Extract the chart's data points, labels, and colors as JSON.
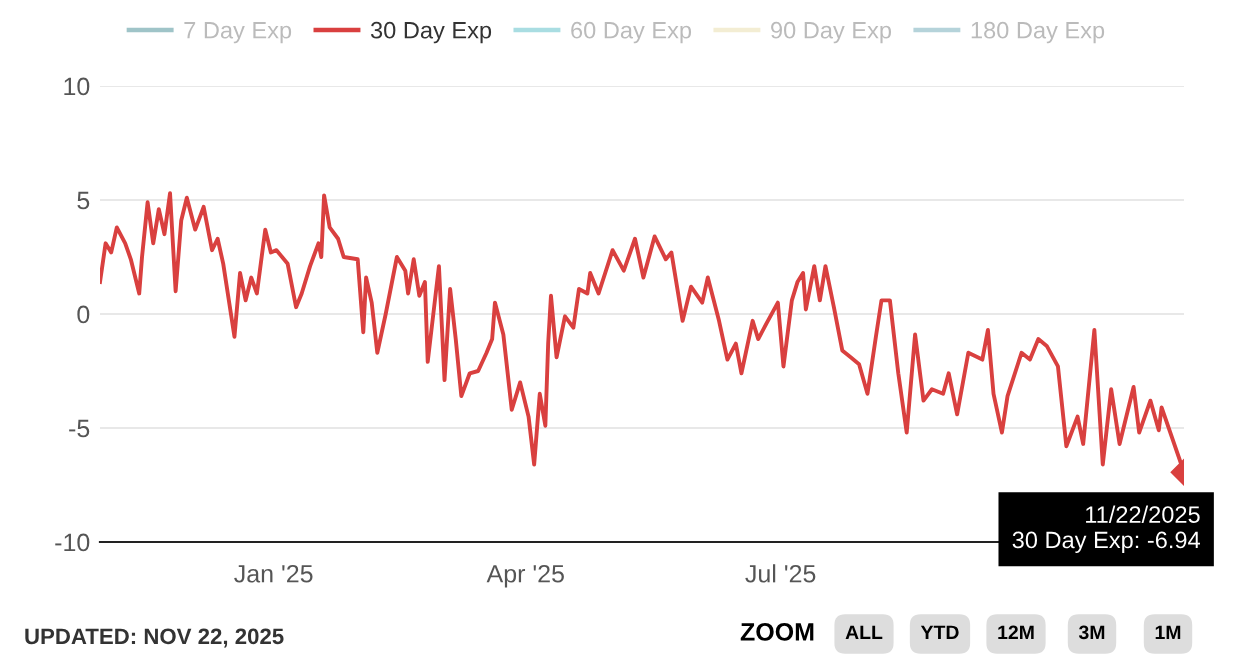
{
  "chart_data": {
    "type": "line",
    "x": [
      "2024-10-31",
      "2024-11-02",
      "2024-11-04",
      "2024-11-06",
      "2024-11-09",
      "2024-11-11",
      "2024-11-14",
      "2024-11-15",
      "2024-11-17",
      "2024-11-19",
      "2024-11-21",
      "2024-11-23",
      "2024-11-25",
      "2024-11-27",
      "2024-11-29",
      "2024-12-01",
      "2024-12-04",
      "2024-12-07",
      "2024-12-10",
      "2024-12-12",
      "2024-12-14",
      "2024-12-18",
      "2024-12-20",
      "2024-12-22",
      "2024-12-24",
      "2024-12-26",
      "2024-12-29",
      "2024-12-31",
      "2025-01-02",
      "2025-01-06",
      "2025-01-09",
      "2025-01-11",
      "2025-01-14",
      "2025-01-17",
      "2025-01-18",
      "2025-01-19",
      "2025-01-21",
      "2025-01-24",
      "2025-01-26",
      "2025-01-31",
      "2025-02-02",
      "2025-02-03",
      "2025-02-05",
      "2025-02-07",
      "2025-02-10",
      "2025-02-14",
      "2025-02-17",
      "2025-02-18",
      "2025-02-20",
      "2025-02-22",
      "2025-02-24",
      "2025-02-25",
      "2025-03-01",
      "2025-03-03",
      "2025-03-05",
      "2025-03-07",
      "2025-03-09",
      "2025-03-12",
      "2025-03-15",
      "2025-03-18",
      "2025-03-20",
      "2025-03-21",
      "2025-03-24",
      "2025-03-27",
      "2025-03-30",
      "2025-04-02",
      "2025-04-04",
      "2025-04-06",
      "2025-04-08",
      "2025-04-09",
      "2025-04-10",
      "2025-04-12",
      "2025-04-15",
      "2025-04-18",
      "2025-04-20",
      "2025-04-23",
      "2025-04-24",
      "2025-04-27",
      "2025-05-02",
      "2025-05-06",
      "2025-05-10",
      "2025-05-13",
      "2025-05-17",
      "2025-05-21",
      "2025-05-23",
      "2025-05-27",
      "2025-05-30",
      "2025-06-03",
      "2025-06-05",
      "2025-06-09",
      "2025-06-12",
      "2025-06-15",
      "2025-06-17",
      "2025-06-21",
      "2025-06-23",
      "2025-06-26",
      "2025-06-30",
      "2025-07-02",
      "2025-07-05",
      "2025-07-07",
      "2025-07-09",
      "2025-07-10",
      "2025-07-13",
      "2025-07-15",
      "2025-07-17",
      "2025-07-20",
      "2025-07-23",
      "2025-07-26",
      "2025-07-29",
      "2025-08-01",
      "2025-08-04",
      "2025-08-06",
      "2025-08-09",
      "2025-08-12",
      "2025-08-15",
      "2025-08-18",
      "2025-08-21",
      "2025-08-24",
      "2025-08-28",
      "2025-08-30",
      "2025-09-02",
      "2025-09-06",
      "2025-09-11",
      "2025-09-13",
      "2025-09-15",
      "2025-09-18",
      "2025-09-20",
      "2025-09-25",
      "2025-09-28",
      "2025-10-01",
      "2025-10-04",
      "2025-10-08",
      "2025-10-11",
      "2025-10-15",
      "2025-10-17",
      "2025-10-21",
      "2025-10-24",
      "2025-10-27",
      "2025-10-30",
      "2025-11-04",
      "2025-11-06",
      "2025-11-10",
      "2025-11-13",
      "2025-11-14",
      "2025-11-22"
    ],
    "series": [
      {
        "name": "7 Day Exp",
        "color": "#9fc4c8",
        "values": [
          null,
          null,
          null,
          null,
          null,
          null,
          null,
          null,
          null,
          null,
          null,
          null,
          null,
          null,
          null,
          null,
          null,
          null,
          null,
          null,
          null,
          null,
          null,
          null,
          null,
          null,
          null,
          null,
          null,
          null,
          null,
          null,
          null,
          null,
          null,
          null,
          null,
          null,
          null,
          null,
          null,
          null,
          null,
          null,
          null,
          null,
          null,
          null,
          null,
          null,
          null,
          null,
          null,
          null,
          null,
          null,
          null,
          null,
          null,
          null,
          null,
          null,
          null,
          null,
          null,
          null,
          null,
          null,
          null,
          null,
          null,
          null,
          null,
          null,
          null,
          null,
          null,
          null,
          null,
          null,
          null,
          null,
          null,
          null,
          null,
          null,
          null,
          null,
          null,
          null,
          null,
          null,
          null,
          null,
          null,
          null,
          null,
          null,
          null,
          null,
          null,
          null,
          null,
          null,
          null,
          null,
          null,
          null,
          null,
          null,
          null,
          null,
          null,
          null,
          null,
          null,
          null,
          null,
          null,
          null,
          null,
          null,
          null,
          null,
          null,
          null,
          null,
          null,
          null,
          null,
          null,
          null,
          null,
          null,
          null,
          null,
          null,
          null,
          null,
          null,
          null,
          null,
          null,
          null,
          null
        ]
      },
      {
        "name": "30 Day Exp",
        "color": "#d9403f",
        "values": [
          1.4,
          3.1,
          2.7,
          3.8,
          3.1,
          2.4,
          0.9,
          2.5,
          4.9,
          3.1,
          4.6,
          3.5,
          5.3,
          1.0,
          4.1,
          5.1,
          3.7,
          4.7,
          2.8,
          3.3,
          2.2,
          -1.0,
          1.8,
          0.6,
          1.6,
          0.9,
          3.7,
          2.7,
          2.8,
          2.2,
          0.3,
          0.9,
          2.1,
          3.1,
          2.5,
          5.2,
          3.8,
          3.3,
          2.5,
          2.4,
          -0.8,
          1.6,
          0.5,
          -1.7,
          0.0,
          2.5,
          1.9,
          0.9,
          2.4,
          0.8,
          1.4,
          -2.1,
          2.1,
          -2.9,
          1.1,
          -1.1,
          -3.6,
          -2.6,
          -2.5,
          -1.7,
          -1.1,
          0.5,
          -0.9,
          -4.2,
          -3.0,
          -4.5,
          -6.6,
          -3.5,
          -4.9,
          -1.3,
          0.8,
          -1.9,
          -0.1,
          -0.6,
          1.1,
          0.9,
          1.8,
          0.9,
          2.8,
          1.9,
          3.3,
          1.6,
          3.4,
          2.4,
          2.7,
          -0.3,
          1.2,
          0.5,
          1.6,
          -0.3,
          -2.0,
          -1.3,
          -2.6,
          -0.3,
          -1.1,
          -0.4,
          0.5,
          -2.3,
          0.6,
          1.4,
          1.8,
          0.2,
          2.1,
          0.6,
          2.1,
          0.3,
          -1.6,
          -1.9,
          -2.2,
          -3.5,
          -1.0,
          0.6,
          0.6,
          -2.6,
          -5.2,
          -0.9,
          -3.8,
          -3.3,
          -3.5,
          -2.6,
          -4.4,
          -1.7,
          -2.0,
          -0.7,
          -3.5,
          -5.2,
          -3.6,
          -1.7,
          -2.0,
          -1.1,
          -1.4,
          -2.3,
          -5.8,
          -4.5,
          -5.7,
          -0.7,
          -6.6,
          -3.3,
          -5.7,
          -3.2,
          -5.2,
          -3.8,
          -5.1,
          -4.1,
          -6.94
        ]
      },
      {
        "name": "60 Day Exp",
        "color": "#a9dde2",
        "values": [
          null,
          null,
          null,
          null,
          null,
          null,
          null,
          null,
          null,
          null,
          null,
          null,
          null,
          null,
          null,
          null,
          null,
          null,
          null,
          null,
          null,
          null,
          null,
          null,
          null,
          null,
          null,
          null,
          null,
          null,
          null,
          null,
          null,
          null,
          null,
          null,
          null,
          null,
          null,
          null,
          null,
          null,
          null,
          null,
          null,
          null,
          null,
          null,
          null,
          null,
          null,
          null,
          null,
          null,
          null,
          null,
          null,
          null,
          null,
          null,
          null,
          null,
          null,
          null,
          null,
          null,
          null,
          null,
          null,
          null,
          null,
          null,
          null,
          null,
          null,
          null,
          null,
          null,
          null,
          null,
          null,
          null,
          null,
          null,
          null,
          null,
          null,
          null,
          null,
          null,
          null,
          null,
          null,
          null,
          null,
          null,
          null,
          null,
          null,
          null,
          null,
          null,
          null,
          null,
          null,
          null,
          null,
          null,
          null,
          null,
          null,
          null,
          null,
          null,
          null,
          null,
          null,
          null,
          null,
          null,
          null,
          null,
          null,
          null,
          null,
          null,
          null,
          null,
          null,
          null,
          null,
          null,
          null,
          null,
          null,
          null,
          null,
          null,
          null,
          null,
          null,
          null,
          null,
          null,
          null
        ]
      },
      {
        "name": "90 Day Exp",
        "color": "#f3edd3",
        "values": [
          null,
          null,
          null,
          null,
          null,
          null,
          null,
          null,
          null,
          null,
          null,
          null,
          null,
          null,
          null,
          null,
          null,
          null,
          null,
          null,
          null,
          null,
          null,
          null,
          null,
          null,
          null,
          null,
          null,
          null,
          null,
          null,
          null,
          null,
          null,
          null,
          null,
          null,
          null,
          null,
          null,
          null,
          null,
          null,
          null,
          null,
          null,
          null,
          null,
          null,
          null,
          null,
          null,
          null,
          null,
          null,
          null,
          null,
          null,
          null,
          null,
          null,
          null,
          null,
          null,
          null,
          null,
          null,
          null,
          null,
          null,
          null,
          null,
          null,
          null,
          null,
          null,
          null,
          null,
          null,
          null,
          null,
          null,
          null,
          null,
          null,
          null,
          null,
          null,
          null,
          null,
          null,
          null,
          null,
          null,
          null,
          null,
          null,
          null,
          null,
          null,
          null,
          null,
          null,
          null,
          null,
          null,
          null,
          null,
          null,
          null,
          null,
          null,
          null,
          null,
          null,
          null,
          null,
          null,
          null,
          null,
          null,
          null,
          null,
          null,
          null,
          null,
          null,
          null,
          null,
          null,
          null,
          null,
          null,
          null,
          null,
          null,
          null,
          null,
          null,
          null,
          null,
          null,
          null,
          null
        ]
      },
      {
        "name": "180 Day Exp",
        "color": "#b5d3da",
        "values": [
          null,
          null,
          null,
          null,
          null,
          null,
          null,
          null,
          null,
          null,
          null,
          null,
          null,
          null,
          null,
          null,
          null,
          null,
          null,
          null,
          null,
          null,
          null,
          null,
          null,
          null,
          null,
          null,
          null,
          null,
          null,
          null,
          null,
          null,
          null,
          null,
          null,
          null,
          null,
          null,
          null,
          null,
          null,
          null,
          null,
          null,
          null,
          null,
          null,
          null,
          null,
          null,
          null,
          null,
          null,
          null,
          null,
          null,
          null,
          null,
          null,
          null,
          null,
          null,
          null,
          null,
          null,
          null,
          null,
          null,
          null,
          null,
          null,
          null,
          null,
          null,
          null,
          null,
          null,
          null,
          null,
          null,
          null,
          null,
          null,
          null,
          null,
          null,
          null,
          null,
          null,
          null,
          null,
          null,
          null,
          null,
          null,
          null,
          null,
          null,
          null,
          null,
          null,
          null,
          null,
          null,
          null,
          null,
          null,
          null,
          null,
          null,
          null,
          null,
          null,
          null,
          null,
          null,
          null,
          null,
          null,
          null,
          null,
          null,
          null,
          null,
          null,
          null,
          null,
          null,
          null,
          null,
          null,
          null,
          null,
          null,
          null,
          null,
          null,
          null,
          null,
          null,
          null,
          null,
          null
        ]
      }
    ],
    "xlim": [
      "2024-10-31",
      "2025-11-22"
    ],
    "xticks": [
      {
        "value": "2025-01-01",
        "label": "Jan '25"
      },
      {
        "value": "2025-04-01",
        "label": "Apr '25"
      },
      {
        "value": "2025-07-01",
        "label": "Jul '25"
      }
    ],
    "ylim": [
      -10,
      10
    ],
    "yticks": [
      -10,
      -5,
      0,
      5,
      10
    ],
    "grid": "y",
    "legend": "top",
    "marker": "none",
    "line_style": "solid",
    "annotations": [
      {
        "text": "11/22/2025\n30 Day Exp: -6.94",
        "x": "2025-11-22",
        "y": -6.94
      },
      "UPDATED: NOV 22, 2025",
      "ZOOM",
      "ALL",
      "YTD",
      "12M",
      "3M",
      "1M"
    ]
  }
}
